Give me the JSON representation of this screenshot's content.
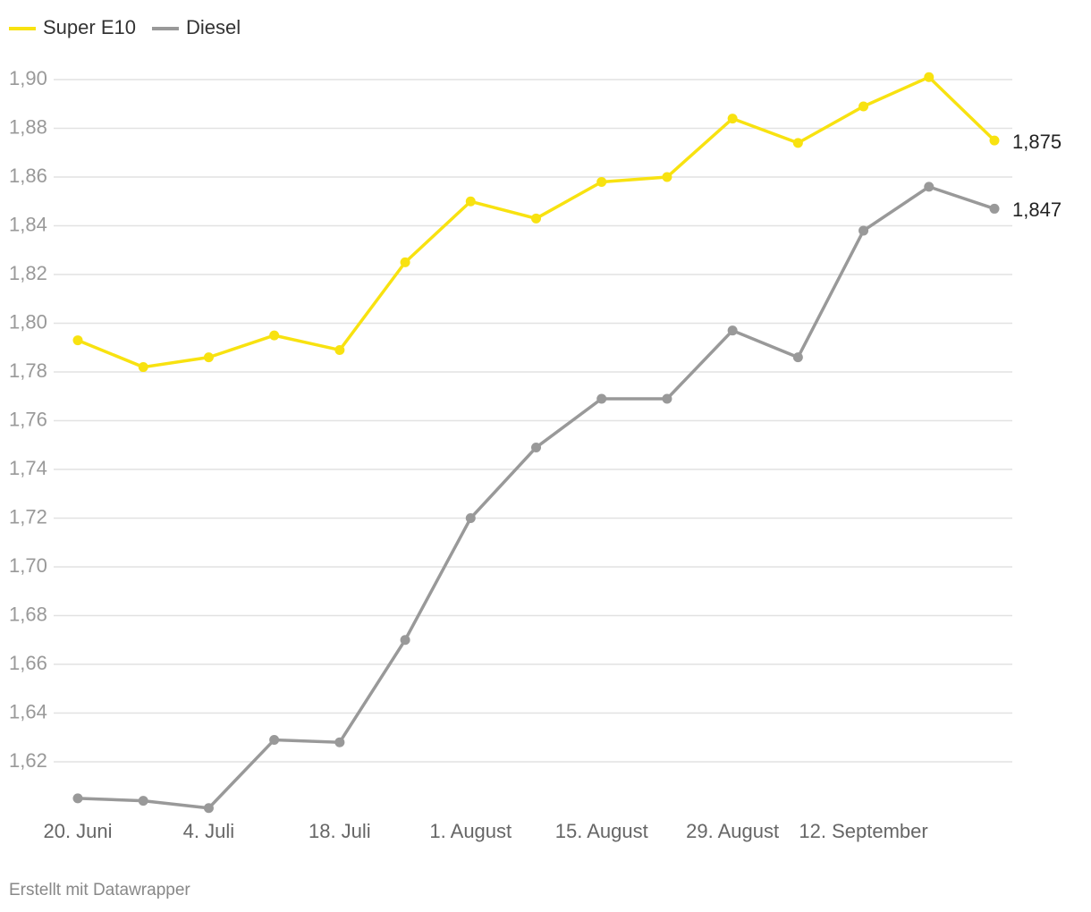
{
  "chart_data": {
    "type": "line",
    "categories": [
      "20. Juni",
      null,
      "4. Juli",
      null,
      "18. Juli",
      null,
      "1. August",
      null,
      "15. August",
      null,
      "29. August",
      null,
      "12. September",
      null,
      null
    ],
    "series": [
      {
        "name": "Super E10",
        "color": "#f8e210",
        "values": [
          1.793,
          1.782,
          1.786,
          1.795,
          1.789,
          1.825,
          1.85,
          1.843,
          1.858,
          1.86,
          1.884,
          1.874,
          1.889,
          1.901,
          1.875
        ],
        "value_labels": [
          null,
          null,
          null,
          null,
          null,
          null,
          null,
          null,
          null,
          null,
          null,
          null,
          null,
          null,
          "1,875"
        ]
      },
      {
        "name": "Diesel",
        "color": "#999999",
        "values": [
          1.605,
          1.604,
          1.601,
          1.629,
          1.628,
          1.67,
          1.72,
          1.749,
          1.769,
          1.769,
          1.797,
          1.786,
          1.838,
          1.856,
          1.847
        ],
        "value_labels": [
          null,
          null,
          null,
          null,
          null,
          null,
          null,
          null,
          null,
          null,
          null,
          null,
          null,
          null,
          "1,847"
        ]
      }
    ],
    "ylim": [
      1.6,
      1.9
    ],
    "yticks": [
      {
        "value": 1.62,
        "label": "1,62"
      },
      {
        "value": 1.64,
        "label": "1,64"
      },
      {
        "value": 1.66,
        "label": "1,66"
      },
      {
        "value": 1.68,
        "label": "1,68"
      },
      {
        "value": 1.7,
        "label": "1,70"
      },
      {
        "value": 1.72,
        "label": "1,72"
      },
      {
        "value": 1.74,
        "label": "1,74"
      },
      {
        "value": 1.76,
        "label": "1,76"
      },
      {
        "value": 1.78,
        "label": "1,78"
      },
      {
        "value": 1.8,
        "label": "1,80"
      },
      {
        "value": 1.82,
        "label": "1,82"
      },
      {
        "value": 1.84,
        "label": "1,84"
      },
      {
        "value": 1.86,
        "label": "1,86"
      },
      {
        "value": 1.88,
        "label": "1,88"
      },
      {
        "value": 1.9,
        "label": "1,90"
      }
    ],
    "grid": true,
    "source": "Erstellt mit Datawrapper"
  }
}
